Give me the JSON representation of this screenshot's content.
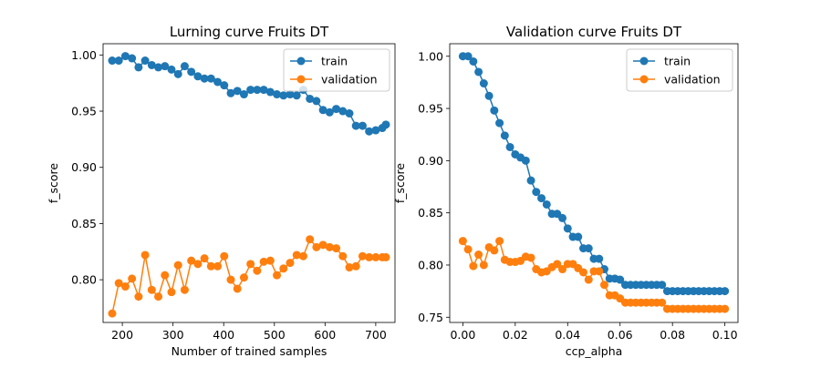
{
  "chart_data": [
    {
      "type": "line",
      "title": "Lurning curve Fruits DT",
      "xlabel": "Number of trained samples",
      "ylabel": "f_score",
      "xlim": [
        162,
        738
      ],
      "ylim": [
        0.762,
        1.01
      ],
      "xticks": [
        200,
        300,
        400,
        500,
        600,
        700
      ],
      "xtick_labels": [
        "200",
        "300",
        "400",
        "500",
        "600",
        "700"
      ],
      "yticks": [
        0.8,
        0.85,
        0.9,
        0.95,
        1.0
      ],
      "ytick_labels": [
        "0.80",
        "0.85",
        "0.90",
        "0.95",
        "1.00"
      ],
      "legend": "upper right",
      "grid": false,
      "x": [
        180,
        193,
        206,
        219,
        232,
        245,
        258,
        271,
        284,
        297,
        310,
        323,
        336,
        349,
        362,
        375,
        388,
        401,
        414,
        427,
        440,
        453,
        466,
        479,
        492,
        505,
        518,
        531,
        544,
        557,
        570,
        583,
        596,
        609,
        622,
        635,
        648,
        661,
        674,
        687,
        700,
        713,
        720
      ],
      "series": [
        {
          "name": "train",
          "color": "#1f77b4",
          "values": [
            0.995,
            0.995,
            0.999,
            0.997,
            0.989,
            0.995,
            0.991,
            0.989,
            0.99,
            0.987,
            0.983,
            0.99,
            0.985,
            0.981,
            0.979,
            0.979,
            0.976,
            0.973,
            0.966,
            0.968,
            0.965,
            0.969,
            0.969,
            0.969,
            0.967,
            0.965,
            0.964,
            0.965,
            0.964,
            0.969,
            0.961,
            0.959,
            0.951,
            0.949,
            0.952,
            0.95,
            0.948,
            0.937,
            0.937,
            0.932,
            0.933,
            0.935,
            0.938
          ]
        },
        {
          "name": "validation",
          "color": "#ff7f0e",
          "values": [
            0.77,
            0.797,
            0.794,
            0.801,
            0.785,
            0.822,
            0.791,
            0.785,
            0.804,
            0.789,
            0.813,
            0.791,
            0.817,
            0.814,
            0.819,
            0.812,
            0.812,
            0.821,
            0.8,
            0.792,
            0.802,
            0.814,
            0.808,
            0.816,
            0.817,
            0.804,
            0.81,
            0.815,
            0.822,
            0.821,
            0.836,
            0.829,
            0.831,
            0.829,
            0.828,
            0.821,
            0.811,
            0.812,
            0.821,
            0.82,
            0.82,
            0.82,
            0.82
          ]
        }
      ]
    },
    {
      "type": "line",
      "title": "Validation curve Fruits DT",
      "xlabel": "ccp_alpha",
      "ylabel": "f_score",
      "xlim": [
        -0.005,
        0.105
      ],
      "ylim": [
        0.745,
        1.012
      ],
      "xticks": [
        0.0,
        0.02,
        0.04,
        0.06,
        0.08,
        0.1
      ],
      "xtick_labels": [
        "0.00",
        "0.02",
        "0.04",
        "0.06",
        "0.08",
        "0.10"
      ],
      "yticks": [
        0.75,
        0.8,
        0.85,
        0.9,
        0.95,
        1.0
      ],
      "ytick_labels": [
        "0.75",
        "0.80",
        "0.85",
        "0.90",
        "0.95",
        "1.00"
      ],
      "legend": "upper right",
      "grid": false,
      "x": [
        0.0,
        0.002,
        0.004,
        0.006,
        0.008,
        0.01,
        0.012,
        0.014,
        0.016,
        0.018,
        0.02,
        0.022,
        0.024,
        0.026,
        0.028,
        0.03,
        0.032,
        0.034,
        0.036,
        0.038,
        0.04,
        0.042,
        0.044,
        0.046,
        0.048,
        0.05,
        0.052,
        0.054,
        0.056,
        0.058,
        0.06,
        0.062,
        0.064,
        0.066,
        0.068,
        0.07,
        0.072,
        0.074,
        0.076,
        0.078,
        0.08,
        0.082,
        0.084,
        0.086,
        0.088,
        0.09,
        0.092,
        0.094,
        0.096,
        0.098,
        0.1
      ],
      "series": [
        {
          "name": "train",
          "color": "#1f77b4",
          "values": [
            1.0,
            1.0,
            0.995,
            0.985,
            0.974,
            0.962,
            0.948,
            0.936,
            0.924,
            0.913,
            0.906,
            0.903,
            0.9,
            0.881,
            0.87,
            0.864,
            0.858,
            0.849,
            0.849,
            0.845,
            0.835,
            0.827,
            0.827,
            0.816,
            0.816,
            0.806,
            0.806,
            0.796,
            0.787,
            0.787,
            0.786,
            0.781,
            0.781,
            0.781,
            0.781,
            0.781,
            0.781,
            0.781,
            0.781,
            0.775,
            0.775,
            0.775,
            0.775,
            0.775,
            0.775,
            0.775,
            0.775,
            0.775,
            0.775,
            0.775,
            0.775
          ]
        },
        {
          "name": "validation",
          "color": "#ff7f0e",
          "values": [
            0.823,
            0.815,
            0.799,
            0.81,
            0.8,
            0.817,
            0.814,
            0.823,
            0.805,
            0.803,
            0.803,
            0.804,
            0.808,
            0.807,
            0.796,
            0.793,
            0.794,
            0.798,
            0.801,
            0.796,
            0.801,
            0.801,
            0.797,
            0.793,
            0.786,
            0.794,
            0.794,
            0.781,
            0.771,
            0.771,
            0.768,
            0.764,
            0.764,
            0.764,
            0.764,
            0.764,
            0.764,
            0.764,
            0.764,
            0.758,
            0.758,
            0.758,
            0.758,
            0.758,
            0.758,
            0.758,
            0.758,
            0.758,
            0.758,
            0.758,
            0.758
          ]
        }
      ]
    }
  ]
}
